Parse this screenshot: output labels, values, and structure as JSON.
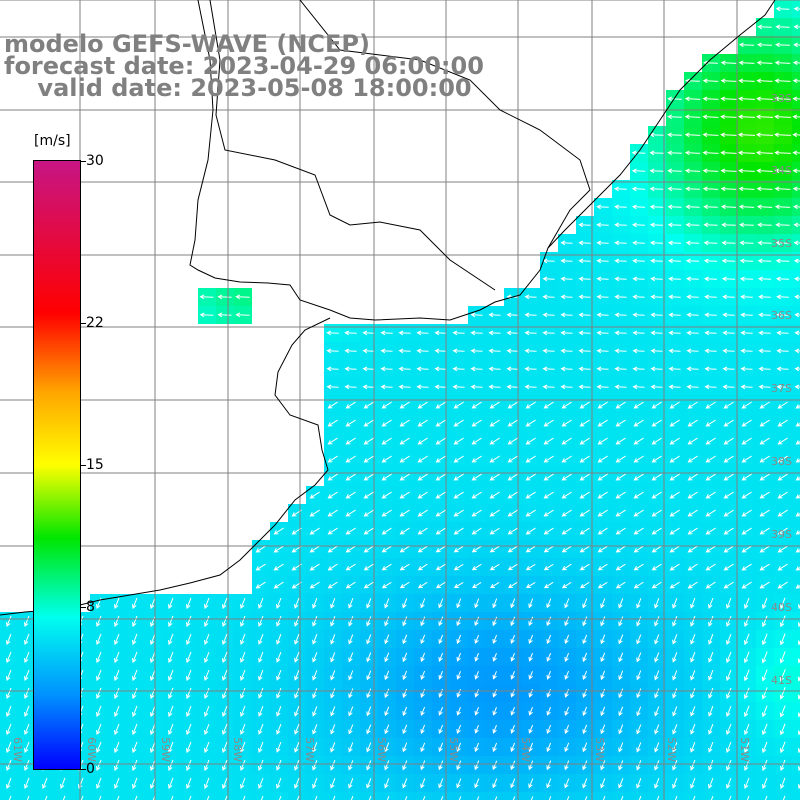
{
  "title": {
    "line1": "modelo GEFS-WAVE (NCEP)",
    "line2": "forecast date: 2023-04-29 06:00:00",
    "line3": "    valid date: 2023-05-08 18:00:00"
  },
  "colorbar": {
    "unit": "[m/s]",
    "ticks": [
      {
        "label": "30",
        "value": 30
      },
      {
        "label": "22",
        "value": 22
      },
      {
        "label": "15",
        "value": 15
      },
      {
        "label": "8",
        "value": 8
      },
      {
        "label": "0",
        "value": 0
      }
    ]
  },
  "map": {
    "lat_labels": [
      "33S",
      "34S",
      "35S",
      "36S",
      "37S",
      "38S",
      "39S",
      "40S",
      "41S"
    ],
    "lon_labels": [
      "61W",
      "60W",
      "59W",
      "58W",
      "57W",
      "56W",
      "55W",
      "54W",
      "53W",
      "52W",
      "51W"
    ],
    "colors": {
      "land": "#ffffff",
      "coast": "#000000",
      "grid": "#808080",
      "arrow": "#ffffff"
    }
  }
}
